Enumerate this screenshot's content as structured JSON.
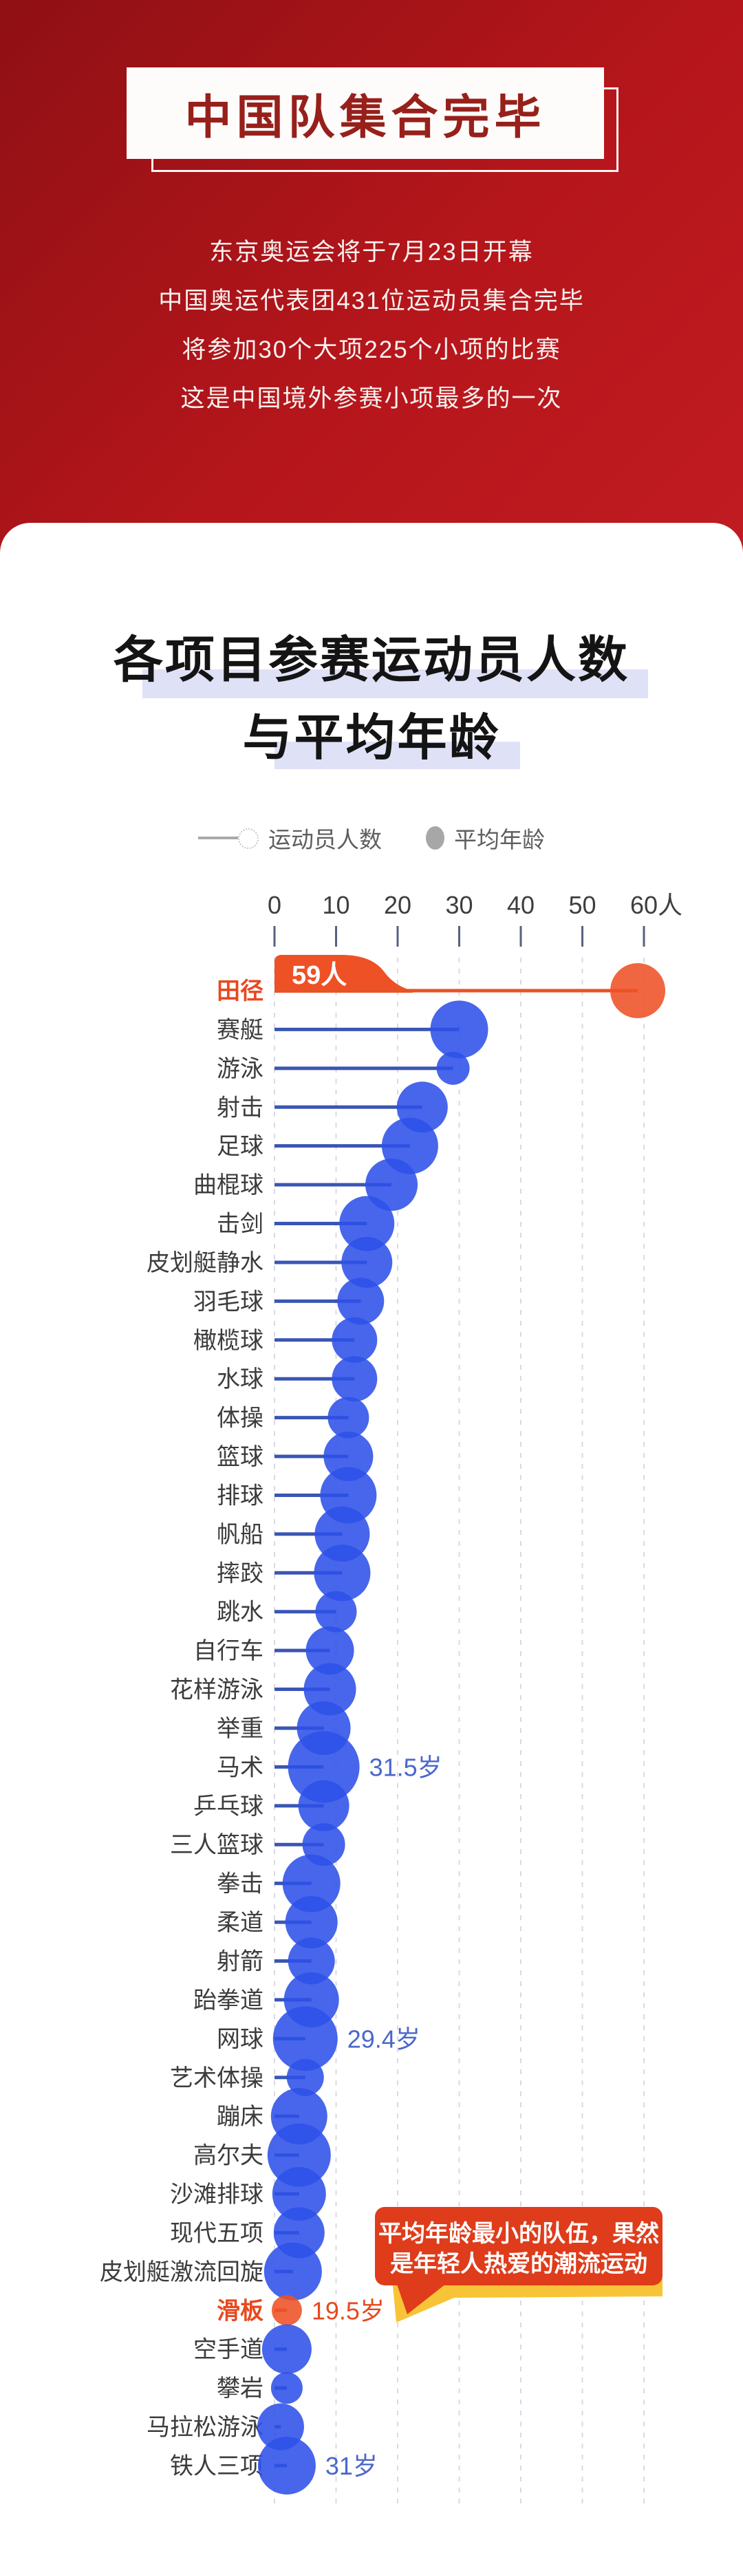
{
  "header": {
    "title": "中国队集合完毕",
    "intro_lines": [
      "东京奥运会将于7月23日开幕",
      "中国奥运代表团431位运动员集合完毕",
      "将参加30个大项225个小项的比赛",
      "这是中国境外参赛小项最多的一次"
    ]
  },
  "chart": {
    "title_line1": "各项目参赛运动员人数",
    "title_line2": "与平均年龄",
    "legend": {
      "athletes_label": "运动员人数",
      "age_label": "平均年龄"
    },
    "axis_ticks": [
      "0",
      "10",
      "20",
      "30",
      "40",
      "50",
      "60人"
    ]
  },
  "chart_data": {
    "type": "bubble-lollipop",
    "x_axis": {
      "min": 0,
      "max": 60,
      "tick_step": 10,
      "unit": "人"
    },
    "encoding": "line length and bubble position = number of athletes; bubble size = average age (only labeled values shown)",
    "athletics_badge": "59人",
    "rows": [
      {
        "name": "田径",
        "athletes": 59,
        "bubble_r": 40,
        "accent": true,
        "age_label": null
      },
      {
        "name": "赛艇",
        "athletes": 30,
        "bubble_r": 42,
        "accent": false,
        "age_label": null
      },
      {
        "name": "游泳",
        "athletes": 29,
        "bubble_r": 24,
        "accent": false,
        "age_label": null
      },
      {
        "name": "射击",
        "athletes": 24,
        "bubble_r": 37,
        "accent": false,
        "age_label": null
      },
      {
        "name": "足球",
        "athletes": 22,
        "bubble_r": 41,
        "accent": false,
        "age_label": null
      },
      {
        "name": "曲棍球",
        "athletes": 19,
        "bubble_r": 38,
        "accent": false,
        "age_label": null
      },
      {
        "name": "击剑",
        "athletes": 15,
        "bubble_r": 40,
        "accent": false,
        "age_label": null
      },
      {
        "name": "皮划艇静水",
        "athletes": 15,
        "bubble_r": 37,
        "accent": false,
        "age_label": null
      },
      {
        "name": "羽毛球",
        "athletes": 14,
        "bubble_r": 34,
        "accent": false,
        "age_label": null
      },
      {
        "name": "橄榄球",
        "athletes": 13,
        "bubble_r": 33,
        "accent": false,
        "age_label": null
      },
      {
        "name": "水球",
        "athletes": 13,
        "bubble_r": 33,
        "accent": false,
        "age_label": null
      },
      {
        "name": "体操",
        "athletes": 12,
        "bubble_r": 30,
        "accent": false,
        "age_label": null
      },
      {
        "name": "篮球",
        "athletes": 12,
        "bubble_r": 36,
        "accent": false,
        "age_label": null
      },
      {
        "name": "排球",
        "athletes": 12,
        "bubble_r": 41,
        "accent": false,
        "age_label": null
      },
      {
        "name": "帆船",
        "athletes": 11,
        "bubble_r": 40,
        "accent": false,
        "age_label": null
      },
      {
        "name": "摔跤",
        "athletes": 11,
        "bubble_r": 41,
        "accent": false,
        "age_label": null
      },
      {
        "name": "跳水",
        "athletes": 10,
        "bubble_r": 30,
        "accent": false,
        "age_label": null
      },
      {
        "name": "自行车",
        "athletes": 9,
        "bubble_r": 35,
        "accent": false,
        "age_label": null
      },
      {
        "name": "花样游泳",
        "athletes": 9,
        "bubble_r": 38,
        "accent": false,
        "age_label": null
      },
      {
        "name": "举重",
        "athletes": 8,
        "bubble_r": 39,
        "accent": false,
        "age_label": null
      },
      {
        "name": "马术",
        "athletes": 8,
        "bubble_r": 52,
        "accent": false,
        "age_label": "31.5岁"
      },
      {
        "name": "乒乓球",
        "athletes": 8,
        "bubble_r": 37,
        "accent": false,
        "age_label": null
      },
      {
        "name": "三人篮球",
        "athletes": 8,
        "bubble_r": 31,
        "accent": false,
        "age_label": null
      },
      {
        "name": "拳击",
        "athletes": 6,
        "bubble_r": 42,
        "accent": false,
        "age_label": null
      },
      {
        "name": "柔道",
        "athletes": 6,
        "bubble_r": 38,
        "accent": false,
        "age_label": null
      },
      {
        "name": "射箭",
        "athletes": 6,
        "bubble_r": 34,
        "accent": false,
        "age_label": null
      },
      {
        "name": "跆拳道",
        "athletes": 6,
        "bubble_r": 40,
        "accent": false,
        "age_label": null
      },
      {
        "name": "网球",
        "athletes": 5,
        "bubble_r": 47,
        "accent": false,
        "age_label": "29.4岁"
      },
      {
        "name": "艺术体操",
        "athletes": 5,
        "bubble_r": 27,
        "accent": false,
        "age_label": null
      },
      {
        "name": "蹦床",
        "athletes": 4,
        "bubble_r": 41,
        "accent": false,
        "age_label": null
      },
      {
        "name": "高尔夫",
        "athletes": 4,
        "bubble_r": 46,
        "accent": false,
        "age_label": null
      },
      {
        "name": "沙滩排球",
        "athletes": 4,
        "bubble_r": 39,
        "accent": false,
        "age_label": null
      },
      {
        "name": "现代五项",
        "athletes": 4,
        "bubble_r": 37,
        "accent": false,
        "age_label": null
      },
      {
        "name": "皮划艇激流回旋",
        "athletes": 3,
        "bubble_r": 42,
        "accent": false,
        "age_label": null
      },
      {
        "name": "滑板",
        "athletes": 2,
        "bubble_r": 22,
        "accent": true,
        "age_label": "19.5岁"
      },
      {
        "name": "空手道",
        "athletes": 2,
        "bubble_r": 36,
        "accent": false,
        "age_label": null
      },
      {
        "name": "攀岩",
        "athletes": 2,
        "bubble_r": 23,
        "accent": false,
        "age_label": null
      },
      {
        "name": "马拉松游泳",
        "athletes": 1,
        "bubble_r": 34,
        "accent": false,
        "age_label": null
      },
      {
        "name": "铁人三项",
        "athletes": 2,
        "bubble_r": 42,
        "accent": false,
        "age_label": "31岁"
      }
    ],
    "callout": {
      "line1": "平均年龄最小的队伍，果然",
      "line2": "是年轻人热爱的潮流运动"
    }
  },
  "colors": {
    "background_red": "#b5161b",
    "title_maroon": "#97201b",
    "bubble_blue": "#2e51e8",
    "line_blue": "#3a55b4",
    "accent_orange": "#ee5126",
    "callout_orange": "#df3c1b",
    "callout_yellow": "#f8c437",
    "highlight_lavender": "#dfe1f6",
    "age_text_blue": "#4a67cb"
  }
}
